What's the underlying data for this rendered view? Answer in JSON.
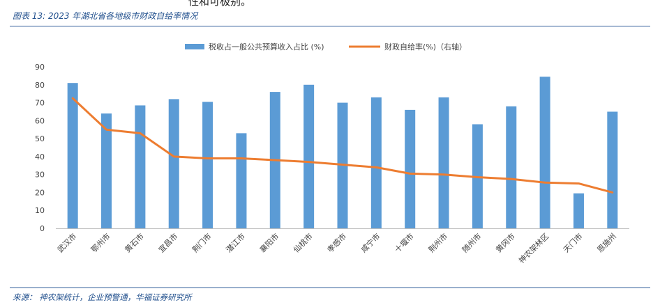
{
  "header": {
    "top_fragment": "性和可极别。",
    "figure_title": "图表 13:  2023 年湖北省各地级市财政自给率情况"
  },
  "footer": {
    "source": "来源：  神农架统计，企业预警通，华福证券研究所"
  },
  "colors": {
    "bar": "#5b9bd5",
    "line": "#ed7d31",
    "rule": "#2e5c99",
    "title": "#1f4e8c"
  },
  "chart_data": {
    "type": "bar",
    "categories": [
      "武汉市",
      "鄂州市",
      "黄石市",
      "宜昌市",
      "荆门市",
      "潜江市",
      "襄阳市",
      "仙桃市",
      "孝感市",
      "咸宁市",
      "十堰市",
      "荆州市",
      "随州市",
      "黄冈市",
      "神农架林区",
      "天门市",
      "恩施州"
    ],
    "series": [
      {
        "name": "税收占一般公共预算收入占比 (%)",
        "type": "bar",
        "values": [
          81,
          64,
          68.5,
          72,
          70.5,
          53,
          76,
          80,
          70,
          73,
          66,
          73,
          58,
          68,
          84.5,
          19.5,
          65
        ]
      },
      {
        "name": "财政自给率(%)（右轴）",
        "type": "line",
        "values": [
          72.5,
          55,
          53,
          40,
          39,
          39,
          38,
          37,
          35.5,
          34,
          30.5,
          30,
          28.5,
          27.5,
          25.5,
          25,
          20
        ]
      }
    ],
    "ylim": [
      0,
      90
    ],
    "yticks": [
      0,
      10,
      20,
      30,
      40,
      50,
      60,
      70,
      80,
      90
    ],
    "grid": false,
    "legend_position": "top"
  }
}
